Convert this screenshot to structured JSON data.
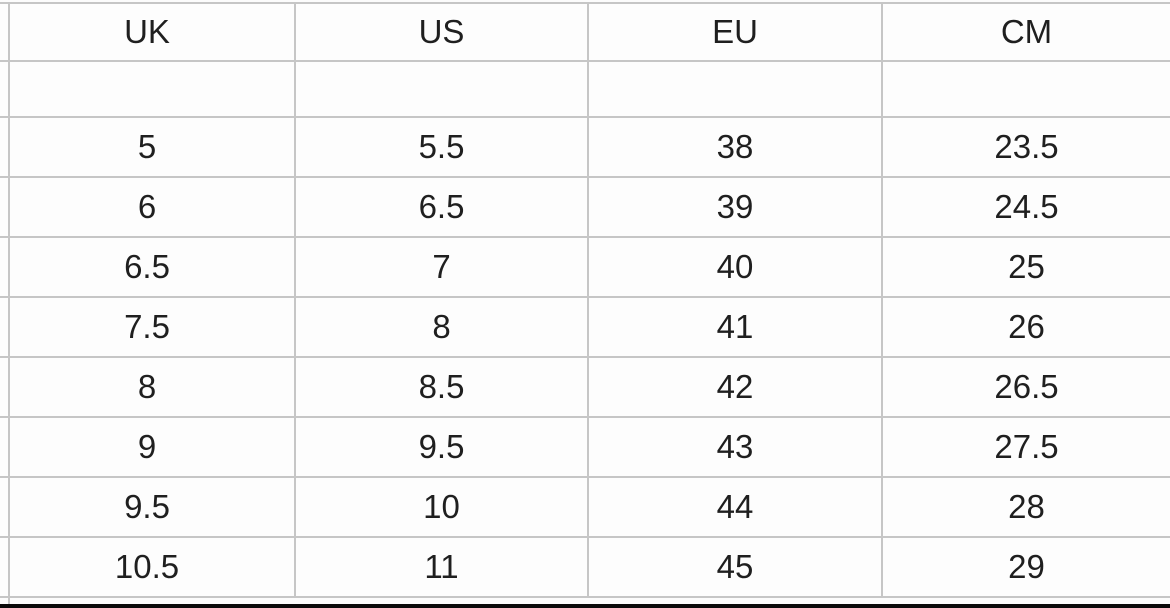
{
  "chart_data": {
    "type": "table",
    "columns": [
      "UK",
      "US",
      "EU",
      "CM"
    ],
    "spacer_row": [
      "",
      "",
      "",
      ""
    ],
    "rows": [
      [
        "5",
        "5.5",
        "38",
        "23.5"
      ],
      [
        "6",
        "6.5",
        "39",
        "24.5"
      ],
      [
        "6.5",
        "7",
        "40",
        "25"
      ],
      [
        "7.5",
        "8",
        "41",
        "26"
      ],
      [
        "8",
        "8.5",
        "42",
        "26.5"
      ],
      [
        "9",
        "9.5",
        "43",
        "27.5"
      ],
      [
        "9.5",
        "10",
        "44",
        "28"
      ],
      [
        "10.5",
        "11",
        "45",
        "29"
      ]
    ],
    "layout": {
      "grid": "on",
      "header_position": "top",
      "cropped_left_column_sliver": true,
      "bottom_black_strip": true
    }
  },
  "colors": {
    "gridline": "#c6c6c6",
    "cell_background": "#fdfdfd",
    "text": "#1f1f1f",
    "bottom_strip": "#0a0a0a"
  }
}
